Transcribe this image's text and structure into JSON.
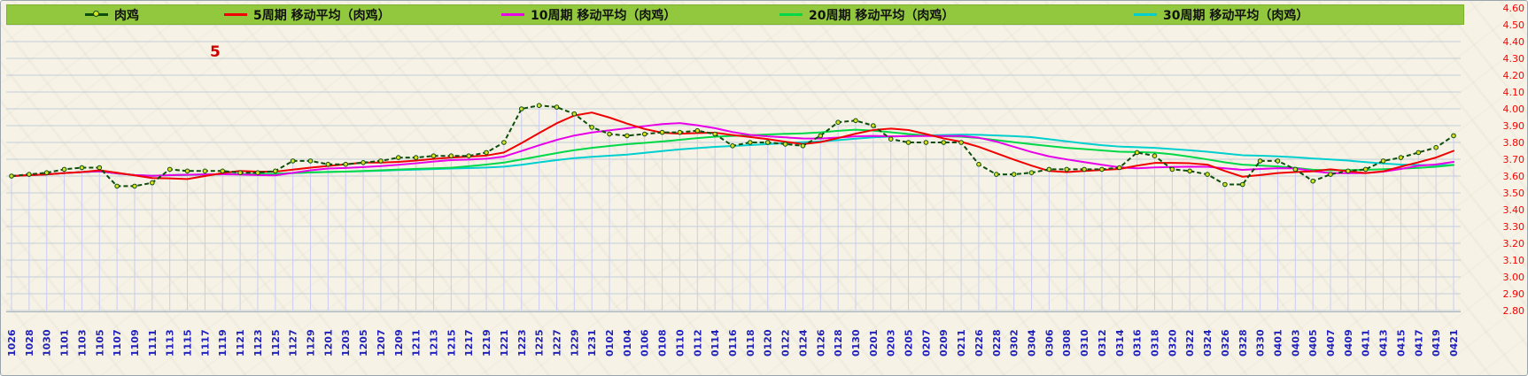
{
  "legend": {
    "background": "#92C83E",
    "items": [
      {
        "label": "肉鸡",
        "color": "#0d4d0d",
        "marker": "line-dot"
      },
      {
        "label": "5周期 移动平均（肉鸡）",
        "color": "#f00000",
        "marker": "line"
      },
      {
        "label": "10周期 移动平均（肉鸡）",
        "color": "#e800e8",
        "marker": "line"
      },
      {
        "label": "20周期 移动平均（肉鸡）",
        "color": "#00d848",
        "marker": "line"
      },
      {
        "label": "30周期 移动平均（肉鸡）",
        "color": "#00cfcf",
        "marker": "line"
      }
    ]
  },
  "chart_data": {
    "type": "line",
    "title": "",
    "xlabel": "",
    "ylabel": "",
    "ylim": [
      2.8,
      4.6
    ],
    "ytick_step": 0.1,
    "ytick_color": "#ff0000",
    "xtick_color": "#2222bb",
    "grid": true,
    "drop_lines": true,
    "drop_line_color": "#cbcbf2",
    "legend_position": "top",
    "annotation": {
      "text": "5",
      "color": "#cc0000"
    },
    "categories": [
      "1026",
      "1028",
      "1030",
      "1101",
      "1103",
      "1105",
      "1107",
      "1109",
      "1111",
      "1113",
      "1115",
      "1117",
      "1119",
      "1121",
      "1123",
      "1125",
      "1127",
      "1129",
      "1201",
      "1203",
      "1205",
      "1207",
      "1209",
      "1211",
      "1213",
      "1215",
      "1217",
      "1219",
      "1221",
      "1223",
      "1225",
      "1227",
      "1229",
      "1231",
      "0102",
      "0104",
      "0106",
      "0108",
      "0110",
      "0112",
      "0114",
      "0116",
      "0118",
      "0120",
      "0122",
      "0124",
      "0126",
      "0128",
      "0130",
      "0201",
      "0203",
      "0205",
      "0207",
      "0209",
      "0211",
      "0226",
      "0228",
      "0302",
      "0304",
      "0306",
      "0308",
      "0310",
      "0312",
      "0314",
      "0316",
      "0318",
      "0320",
      "0322",
      "0324",
      "0326",
      "0328",
      "0330",
      "0401",
      "0403",
      "0405",
      "0407",
      "0409",
      "0411",
      "0413",
      "0415",
      "0417",
      "0419",
      "0421"
    ],
    "series": [
      {
        "name": "肉鸡",
        "color": "#0d4d0d",
        "style": "dashed-markers",
        "marker_fill": "#d9e021",
        "values": [
          3.6,
          3.61,
          3.62,
          3.64,
          3.65,
          3.65,
          3.54,
          3.54,
          3.56,
          3.64,
          3.63,
          3.63,
          3.63,
          3.62,
          3.62,
          3.63,
          3.69,
          3.69,
          3.67,
          3.67,
          3.68,
          3.69,
          3.71,
          3.71,
          3.72,
          3.72,
          3.72,
          3.74,
          3.8,
          4.0,
          4.02,
          4.01,
          3.97,
          3.89,
          3.85,
          3.84,
          3.85,
          3.86,
          3.86,
          3.87,
          3.85,
          3.78,
          3.8,
          3.8,
          3.79,
          3.78,
          3.84,
          3.92,
          3.93,
          3.9,
          3.82,
          3.8,
          3.8,
          3.8,
          3.8,
          3.67,
          3.61,
          3.61,
          3.62,
          3.64,
          3.64,
          3.64,
          3.64,
          3.65,
          3.74,
          3.72,
          3.64,
          3.63,
          3.61,
          3.55,
          3.55,
          3.69,
          3.69,
          3.64,
          3.57,
          3.61,
          3.63,
          3.64,
          3.69,
          3.71,
          3.74,
          3.77,
          3.84
        ]
      },
      {
        "name": "5周期 移动平均（肉鸡）",
        "color": "#f00000",
        "style": "line",
        "derived": "sma",
        "window": 5
      },
      {
        "name": "10周期 移动平均（肉鸡）",
        "color": "#e800e8",
        "style": "line",
        "derived": "sma",
        "window": 10
      },
      {
        "name": "20周期 移动平均（肉鸡）",
        "color": "#00d848",
        "style": "line",
        "derived": "sma",
        "window": 20
      },
      {
        "name": "30周期 移动平均（肉鸡）",
        "color": "#00cfcf",
        "style": "line",
        "derived": "sma",
        "window": 30
      }
    ]
  }
}
